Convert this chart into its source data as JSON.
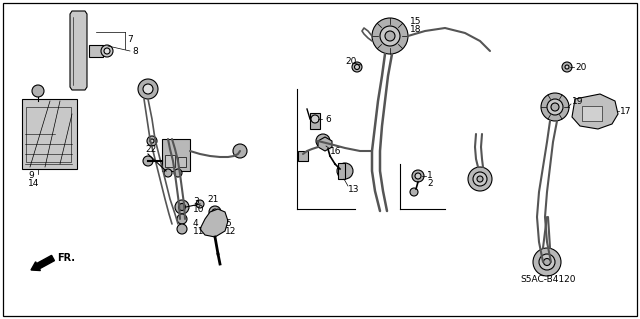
{
  "background_color": "#ffffff",
  "fig_width": 6.4,
  "fig_height": 3.19,
  "dpi": 100,
  "diagram_id": "S5AC-B4120",
  "gray_light": "#d0d0d0",
  "gray_mid": "#b0b0b0",
  "gray_dark": "#888888",
  "black": "#000000",
  "font_size": 6.5,
  "font_size_small": 5.5,
  "font_size_code": 6.5,
  "lw_belt": 2.0,
  "lw_part": 0.8,
  "lw_border": 0.9
}
